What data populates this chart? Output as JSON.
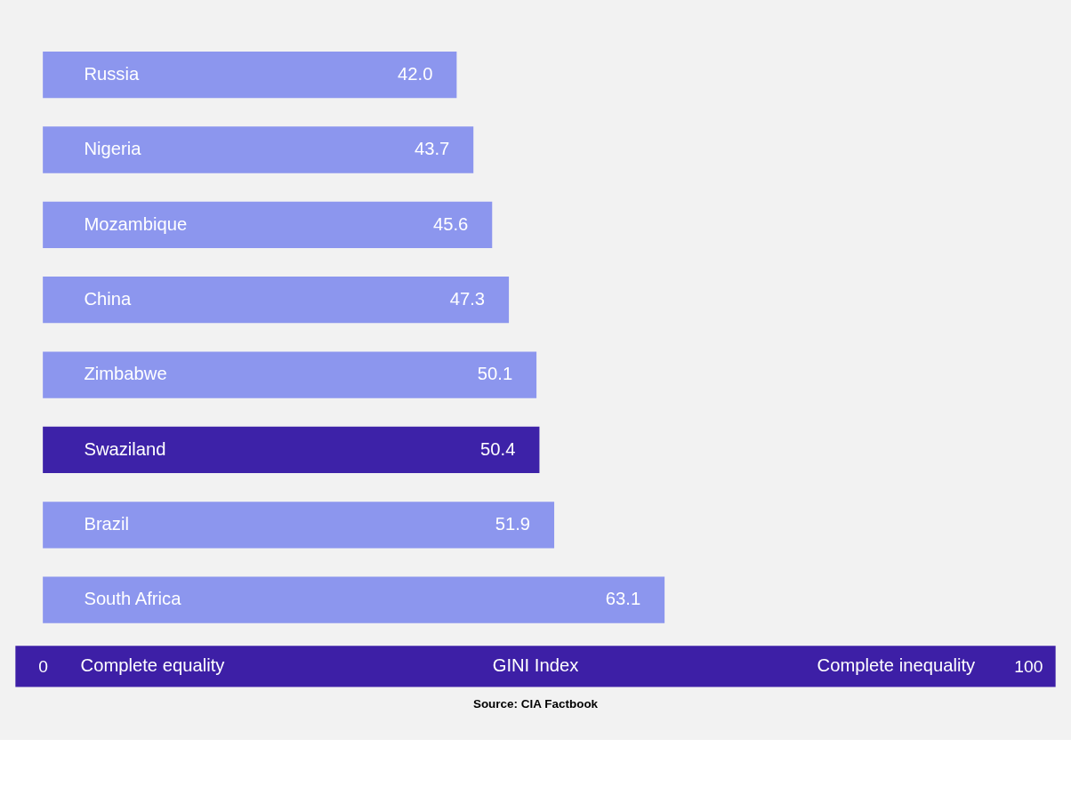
{
  "chart_data": {
    "type": "bar",
    "orientation": "horizontal",
    "categories": [
      "Russia",
      "Nigeria",
      "Mozambique",
      "China",
      "Zimbabwe",
      "Swaziland",
      "Brazil",
      "South Africa"
    ],
    "values": [
      42.0,
      43.7,
      45.6,
      47.3,
      50.1,
      50.4,
      51.9,
      63.1
    ],
    "colors": [
      "#8c96ee",
      "#8c96ee",
      "#8c96ee",
      "#8c96ee",
      "#8c96ee",
      "#3d22a8",
      "#8c96ee",
      "#8c96ee"
    ],
    "value_labels": [
      "42.0",
      "43.7",
      "45.6",
      "47.3",
      "50.1",
      "50.4",
      "51.9",
      "63.1"
    ],
    "xlim": [
      0,
      100
    ],
    "xticks": [
      0,
      100
    ],
    "xlabel": "GINI Index",
    "annotations": [
      "Complete equality",
      "Complete inequality",
      "Source: CIA Factbook"
    ],
    "grid": false
  }
}
